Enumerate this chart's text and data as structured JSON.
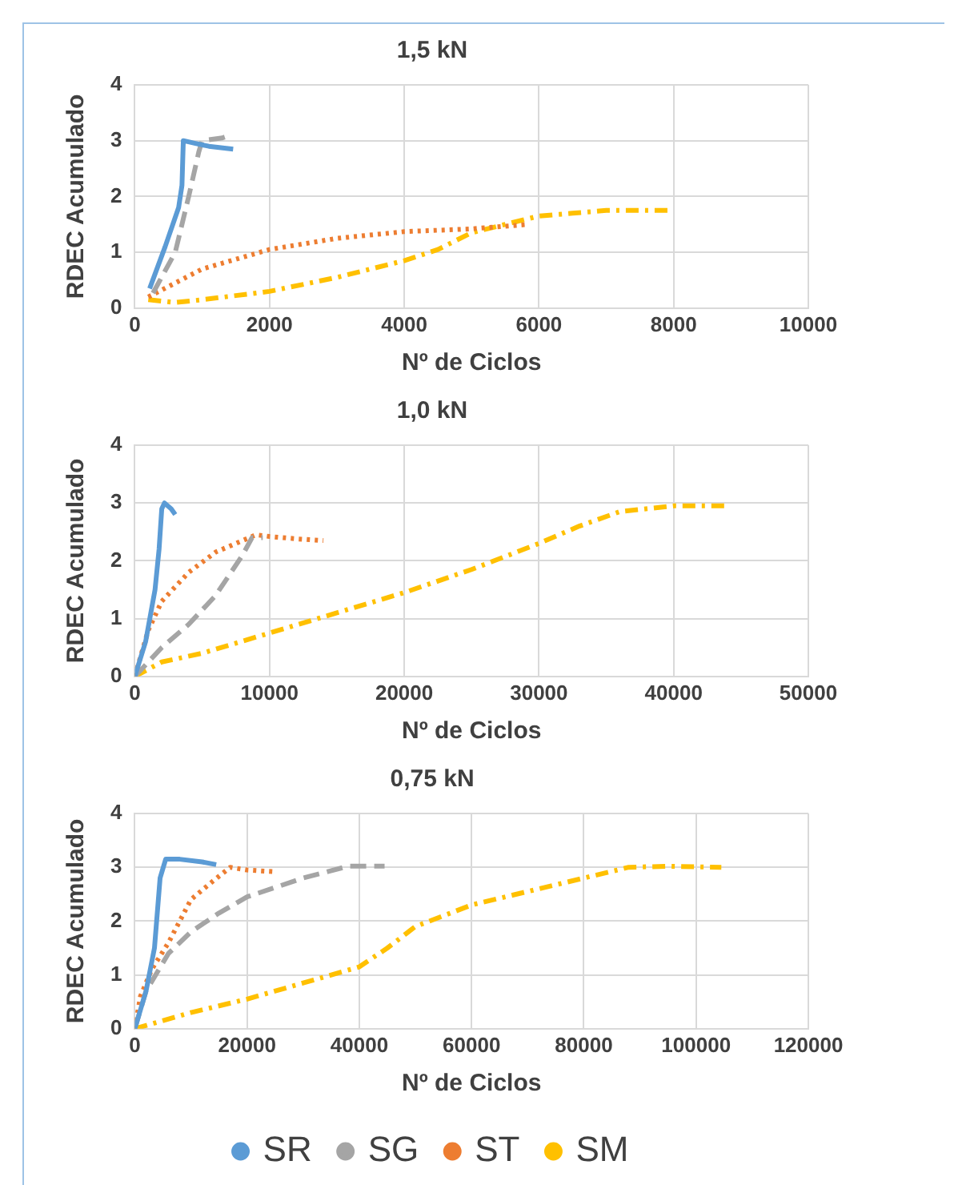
{
  "chart_data": [
    {
      "type": "line",
      "title": "1,5 kN",
      "xlabel": "Nº de Ciclos",
      "ylabel": "RDEC Acumulado",
      "xlim": [
        0,
        10000
      ],
      "xticks": [
        0,
        2000,
        4000,
        6000,
        8000,
        10000
      ],
      "ylim": [
        0,
        4
      ],
      "yticks": [
        0,
        1,
        2,
        3,
        4
      ],
      "grid": true,
      "legend": false,
      "series": [
        {
          "color": "#5b9bd5",
          "line_style": "solid",
          "x": [
            220,
            450,
            650,
            700,
            720,
            900,
            1100,
            1460
          ],
          "values": [
            0.35,
            1.1,
            1.8,
            2.2,
            3.0,
            2.95,
            2.9,
            2.85
          ]
        },
        {
          "color": "#a5a5a5",
          "line_style": "dashed",
          "x": [
            270,
            600,
            800,
            950,
            1000,
            1300,
            1420
          ],
          "values": [
            0.27,
            1.0,
            2.0,
            2.8,
            3.0,
            3.05,
            3.1
          ]
        },
        {
          "color": "#ed7d31",
          "line_style": "dotted",
          "x": [
            200,
            1000,
            2000,
            3000,
            4000,
            5000,
            5840
          ],
          "values": [
            0.2,
            0.7,
            1.05,
            1.25,
            1.37,
            1.42,
            1.5
          ]
        },
        {
          "color": "#ffc000",
          "line_style": "dashdot",
          "x": [
            200,
            600,
            1000,
            2000,
            3000,
            4000,
            4500,
            5000,
            5500,
            6000,
            6500,
            7000,
            8000
          ],
          "values": [
            0.15,
            0.1,
            0.15,
            0.3,
            0.55,
            0.85,
            1.05,
            1.35,
            1.5,
            1.65,
            1.7,
            1.75,
            1.75
          ]
        }
      ]
    },
    {
      "type": "line",
      "title": "1,0 kN",
      "xlabel": "Nº de Ciclos",
      "ylabel": "RDEC Acumulado",
      "xlim": [
        0,
        50000
      ],
      "xticks": [
        0,
        10000,
        20000,
        30000,
        40000,
        50000
      ],
      "ylim": [
        0,
        4
      ],
      "yticks": [
        0,
        1,
        2,
        3,
        4
      ],
      "grid": true,
      "legend": false,
      "series": [
        {
          "color": "#5b9bd5",
          "line_style": "solid",
          "x": [
            0,
            800,
            1500,
            1800,
            2000,
            2200,
            2700,
            3000
          ],
          "values": [
            0,
            0.6,
            1.5,
            2.2,
            2.9,
            3.0,
            2.9,
            2.8
          ]
        },
        {
          "color": "#a5a5a5",
          "line_style": "dashed",
          "x": [
            0,
            2000,
            4000,
            6000,
            8000,
            8700,
            9500
          ],
          "values": [
            0,
            0.5,
            0.9,
            1.4,
            2.1,
            2.4,
            2.4
          ]
        },
        {
          "color": "#ed7d31",
          "line_style": "dotted",
          "x": [
            0,
            1000,
            2000,
            4000,
            6000,
            8000,
            9000,
            10000,
            12000,
            14000
          ],
          "values": [
            0,
            0.8,
            1.3,
            1.8,
            2.15,
            2.35,
            2.45,
            2.42,
            2.38,
            2.35
          ]
        },
        {
          "color": "#ffc000",
          "line_style": "dashdot",
          "x": [
            0,
            2000,
            5000,
            10000,
            15000,
            20000,
            25000,
            30000,
            33000,
            36000,
            40000,
            44000
          ],
          "values": [
            0,
            0.25,
            0.4,
            0.75,
            1.1,
            1.45,
            1.85,
            2.3,
            2.6,
            2.85,
            2.95,
            2.95
          ]
        }
      ]
    },
    {
      "type": "line",
      "title": "0,75 kN",
      "xlabel": "Nº de Ciclos",
      "ylabel": "RDEC Acumulado",
      "xlim": [
        0,
        120000
      ],
      "xticks": [
        0,
        20000,
        40000,
        60000,
        80000,
        100000,
        120000
      ],
      "ylim": [
        0,
        4
      ],
      "yticks": [
        0,
        1,
        2,
        3,
        4
      ],
      "grid": true,
      "legend": "bottom",
      "series": [
        {
          "name": "SR",
          "color": "#5b9bd5",
          "line_style": "solid",
          "x": [
            0,
            2000,
            3500,
            4500,
            5500,
            8000,
            12000,
            14500
          ],
          "values": [
            0,
            0.7,
            1.5,
            2.8,
            3.15,
            3.15,
            3.1,
            3.05
          ]
        },
        {
          "name": "SG",
          "color": "#a5a5a5",
          "line_style": "dashed",
          "x": [
            0,
            2000,
            6000,
            10000,
            15000,
            20000,
            30000,
            38000,
            44500
          ],
          "values": [
            0,
            0.7,
            1.4,
            1.8,
            2.15,
            2.45,
            2.8,
            3.02,
            3.02
          ]
        },
        {
          "name": "ST",
          "color": "#ed7d31",
          "line_style": "dotted",
          "x": [
            0,
            1000,
            3000,
            6000,
            10000,
            14000,
            17000,
            20000,
            24650
          ],
          "values": [
            0,
            0.6,
            1.1,
            1.6,
            2.4,
            2.75,
            3.0,
            2.95,
            2.92
          ]
        },
        {
          "name": "SM",
          "color": "#ffc000",
          "line_style": "dashdot",
          "x": [
            0,
            10000,
            20000,
            30000,
            40000,
            45000,
            50000,
            60000,
            70000,
            80000,
            88000,
            95000,
            104500
          ],
          "values": [
            0,
            0.3,
            0.55,
            0.85,
            1.15,
            1.5,
            1.9,
            2.3,
            2.55,
            2.8,
            3.0,
            3.02,
            3.0
          ]
        }
      ]
    }
  ]
}
